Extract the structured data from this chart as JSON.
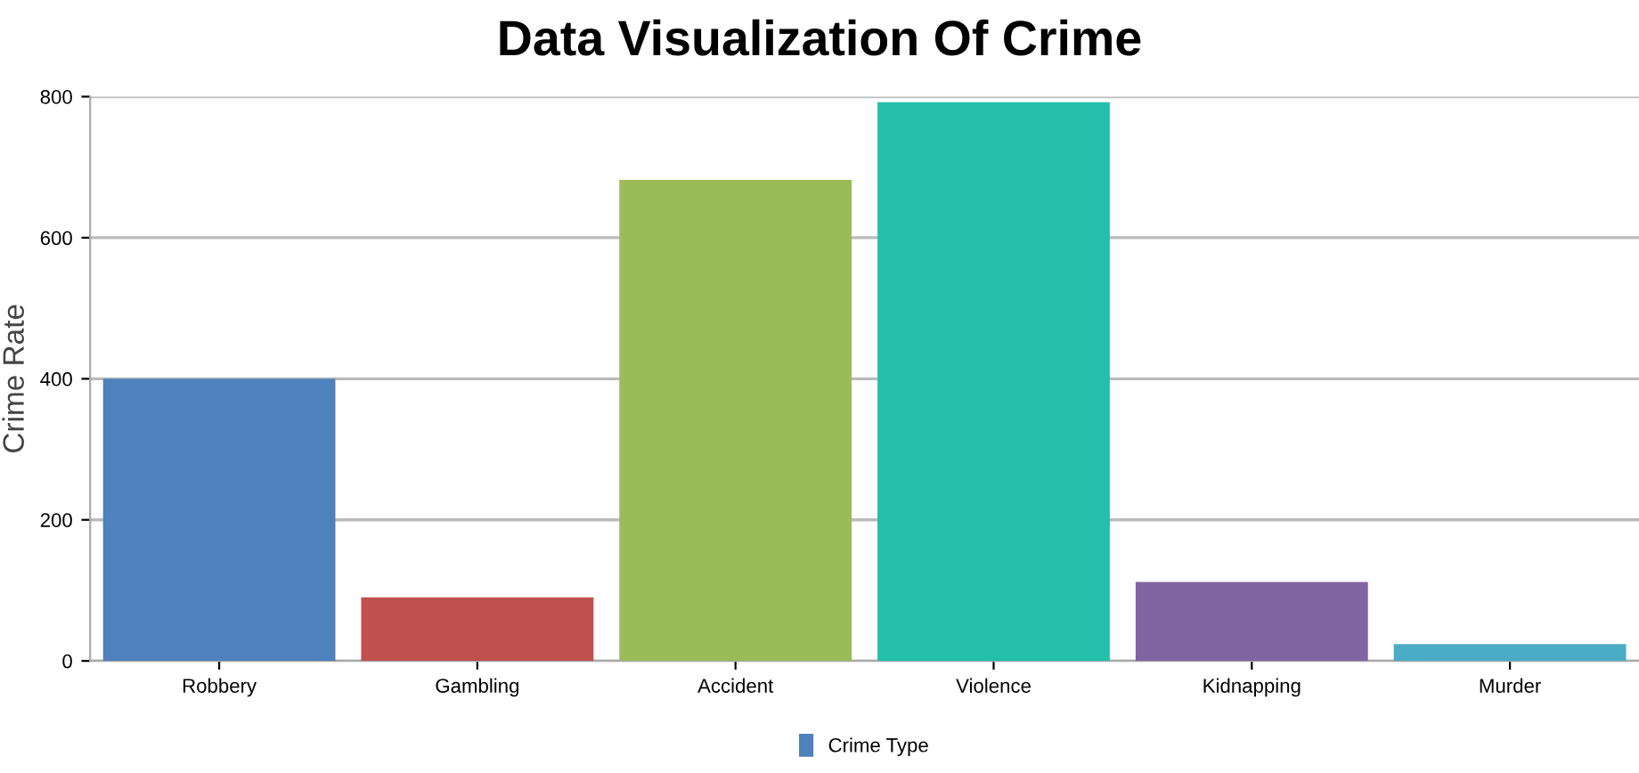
{
  "chart_data": {
    "type": "bar",
    "title": "Data Visualization Of Crime",
    "ylabel": "Crime Rate",
    "categories": [
      "Robbery",
      "Gambling",
      "Accident",
      "Violence",
      "Kidnapping",
      "Murder"
    ],
    "series": [
      {
        "name": "Crime Type",
        "values": [
          400,
          90,
          682,
          792,
          112,
          24
        ],
        "colors": [
          "#4f81bc",
          "#c0504e",
          "#9bbb58",
          "#23bfaa",
          "#8064a1",
          "#4aacc5"
        ]
      }
    ],
    "ylim": [
      0,
      800
    ],
    "yticks": [
      0,
      200,
      400,
      600,
      800
    ],
    "grid": "y",
    "legend": "bottom"
  }
}
